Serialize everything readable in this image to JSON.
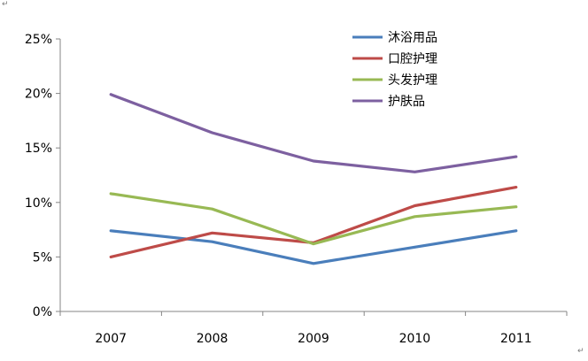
{
  "chart_data": {
    "type": "line",
    "categories": [
      "2007",
      "2008",
      "2009",
      "2010",
      "2011"
    ],
    "y_tick_labels": [
      "0%",
      "5%",
      "10%",
      "15%",
      "20%",
      "25%"
    ],
    "ylim": [
      0,
      25
    ],
    "y_unit": "%",
    "grid": false,
    "legend_position": "top-right",
    "series": [
      {
        "name": "沐浴用品",
        "color": "#4a7ebb",
        "values": [
          7.4,
          6.4,
          4.4,
          5.9,
          7.4
        ]
      },
      {
        "name": "口腔护理",
        "color": "#be4b48",
        "values": [
          5.0,
          7.2,
          6.3,
          9.7,
          11.4
        ]
      },
      {
        "name": "头发护理",
        "color": "#98b954",
        "values": [
          10.8,
          9.4,
          6.2,
          8.7,
          9.6
        ]
      },
      {
        "name": "护肤品",
        "color": "#7d60a0",
        "values": [
          19.9,
          16.4,
          13.8,
          12.8,
          14.2
        ]
      }
    ]
  },
  "marks": {
    "corner_mark": "↵"
  }
}
